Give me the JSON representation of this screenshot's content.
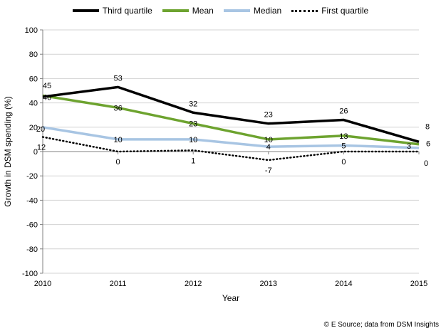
{
  "chart_data": {
    "type": "line",
    "categories": [
      "2010",
      "2011",
      "2012",
      "2013",
      "2014",
      "2015"
    ],
    "series": [
      {
        "name": "Third quartile",
        "color": "#000000",
        "style": "solid",
        "values": [
          45,
          53,
          32,
          23,
          26,
          8
        ]
      },
      {
        "name": "Mean",
        "color": "#6DA32F",
        "style": "solid",
        "values": [
          46,
          36,
          23,
          10,
          13,
          6
        ]
      },
      {
        "name": "Median",
        "color": "#A8C5E3",
        "style": "solid",
        "values": [
          20,
          10,
          10,
          4,
          5,
          3
        ]
      },
      {
        "name": "First quartile",
        "color": "#000000",
        "style": "dotted",
        "values": [
          12,
          0,
          1,
          -7,
          0,
          0
        ]
      }
    ],
    "xlabel": "Year",
    "ylabel": "Growth in DSM spending (%)",
    "ylim": [
      -100,
      100
    ],
    "yticks": [
      100,
      80,
      60,
      40,
      20,
      0,
      -20,
      -40,
      -60,
      -80,
      -100
    ],
    "grid": true,
    "legend_position": "top",
    "data_labels": true
  },
  "footer": {
    "credit": "© E Source; data from DSM Insights"
  },
  "colors": {
    "background": "#FFFFFF",
    "gridline": "#D3D3D3",
    "axis": "#808080",
    "label": "#000000"
  }
}
